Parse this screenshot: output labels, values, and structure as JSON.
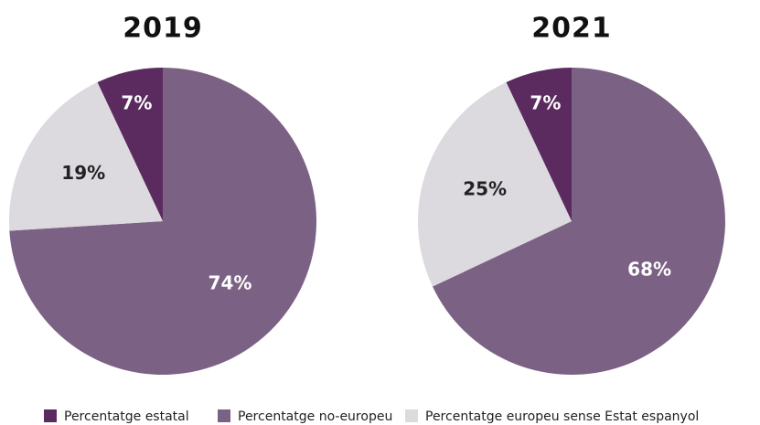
{
  "chart_data": [
    {
      "type": "pie",
      "title": "2019",
      "categories": [
        "Percentatge estatal",
        "Percentatge no-europeu",
        "Percentatge europeu sense Estat espanyol"
      ],
      "values": [
        7,
        74,
        19
      ],
      "value_labels": [
        "7%",
        "74%",
        "19%"
      ],
      "colors": [
        "#5b2b5f",
        "#7b6184",
        "#dcd9df"
      ]
    },
    {
      "type": "pie",
      "title": "2021",
      "categories": [
        "Percentatge estatal",
        "Percentatge no-europeu",
        "Percentatge europeu sense Estat espanyol"
      ],
      "values": [
        7,
        68,
        25
      ],
      "value_labels": [
        "7%",
        "68%",
        "25%"
      ],
      "colors": [
        "#5b2b5f",
        "#7b6184",
        "#dcd9df"
      ]
    }
  ]
}
